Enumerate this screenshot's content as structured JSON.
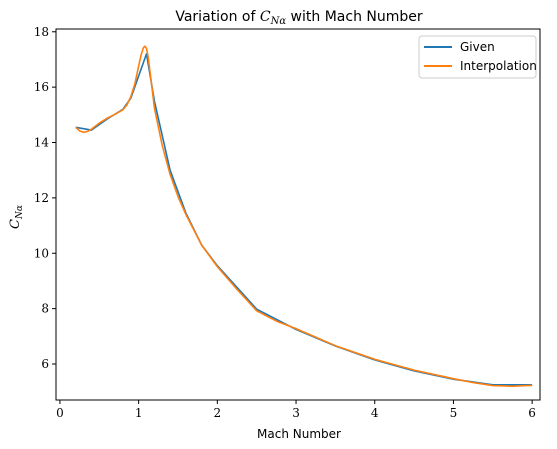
{
  "chart_data": {
    "type": "line",
    "title_prefix": "Variation of ",
    "title_symbol": "C",
    "title_subscript": "Nα",
    "title_suffix": " with Mach Number",
    "xlabel": "Mach Number",
    "ylabel_symbol": "C",
    "ylabel_subscript": "Nα",
    "xlim": [
      -0.05,
      6.1
    ],
    "ylim": [
      4.7,
      18.1
    ],
    "xticks": [
      0,
      1,
      2,
      3,
      4,
      5,
      6
    ],
    "yticks": [
      6,
      8,
      10,
      12,
      14,
      16,
      18
    ],
    "xtick_labels": [
      "0",
      "1",
      "2",
      "3",
      "4",
      "5",
      "6"
    ],
    "ytick_labels": [
      "6",
      "8",
      "10",
      "12",
      "14",
      "16",
      "18"
    ],
    "legend_position": "top-right",
    "grid": false,
    "series": [
      {
        "name": "Given",
        "color": "#1f77b4",
        "x": [
          0.2,
          0.4,
          0.6,
          0.8,
          0.9,
          1.0,
          1.1,
          1.2,
          1.4,
          1.6,
          1.8,
          2.0,
          2.5,
          3.0,
          3.5,
          4.0,
          4.5,
          5.0,
          5.5,
          6.0
        ],
        "y": [
          14.55,
          14.45,
          14.85,
          15.2,
          15.6,
          16.4,
          17.2,
          15.5,
          13.0,
          11.45,
          10.3,
          9.55,
          7.98,
          7.25,
          6.65,
          6.15,
          5.75,
          5.45,
          5.25,
          5.25
        ]
      },
      {
        "name": "Interpolation",
        "color": "#ff7f0e",
        "x": [
          0.2,
          0.25,
          0.3,
          0.35,
          0.4,
          0.5,
          0.6,
          0.7,
          0.8,
          0.85,
          0.9,
          0.95,
          1.0,
          1.03,
          1.06,
          1.08,
          1.1,
          1.12,
          1.15,
          1.2,
          1.3,
          1.4,
          1.5,
          1.6,
          1.8,
          2.0,
          2.25,
          2.5,
          2.75,
          3.0,
          3.5,
          4.0,
          4.5,
          5.0,
          5.25,
          5.5,
          5.75,
          6.0
        ],
        "y": [
          14.55,
          14.42,
          14.37,
          14.4,
          14.48,
          14.7,
          14.88,
          15.02,
          15.18,
          15.35,
          15.65,
          16.1,
          16.75,
          17.15,
          17.42,
          17.48,
          17.4,
          17.1,
          16.45,
          15.25,
          13.9,
          12.85,
          12.05,
          11.4,
          10.3,
          9.52,
          8.7,
          7.92,
          7.55,
          7.28,
          6.66,
          6.17,
          5.78,
          5.47,
          5.33,
          5.22,
          5.2,
          5.23
        ]
      }
    ]
  }
}
